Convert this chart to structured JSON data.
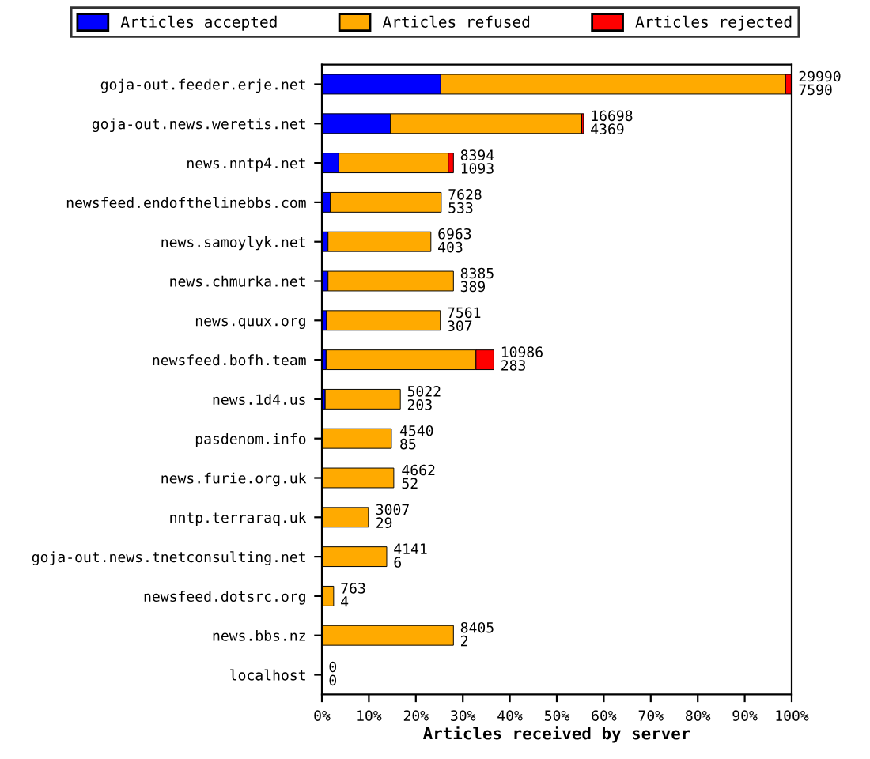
{
  "chart_data": {
    "type": "bar",
    "orientation": "horizontal",
    "stacked": true,
    "xlabel": "Articles received by server",
    "categories": [
      "goja-out.feeder.erje.net",
      "goja-out.news.weretis.net",
      "news.nntp4.net",
      "newsfeed.endofthelinebbs.com",
      "news.samoylyk.net",
      "news.chmurka.net",
      "news.quux.org",
      "newsfeed.bofh.team",
      "news.1d4.us",
      "pasdenom.info",
      "news.furie.org.uk",
      "nntp.terraraq.uk",
      "goja-out.news.tnetconsulting.net",
      "newsfeed.dotsrc.org",
      "news.bbs.nz",
      "localhost"
    ],
    "series": [
      {
        "name": "Articles accepted",
        "color": "#0000ff",
        "values": [
          25.3,
          14.6,
          3.6,
          1.8,
          1.3,
          1.3,
          1.0,
          0.9,
          0.7,
          null,
          null,
          null,
          null,
          null,
          null,
          null
        ]
      },
      {
        "name": "Articles refused",
        "color": "#ffaa00",
        "values": [
          73.4,
          40.7,
          23.3,
          23.6,
          21.9,
          26.7,
          24.2,
          31.9,
          16.0,
          14.8,
          15.3,
          9.9,
          13.8,
          2.5,
          28.0,
          0
        ]
      },
      {
        "name": "Articles rejected",
        "color": "#ff0000",
        "values": [
          1.3,
          0.4,
          1.1,
          null,
          null,
          null,
          null,
          3.8,
          null,
          null,
          null,
          null,
          null,
          null,
          null,
          null
        ]
      }
    ],
    "annotations": [
      {
        "text": "29990\n7590",
        "x": 100,
        "y": "goja-out.feeder.erje.net"
      },
      {
        "text": "16698\n4369",
        "x": 55.7,
        "y": "goja-out.news.weretis.net"
      },
      {
        "text": "8394\n1093",
        "x": 28.0,
        "y": "news.nntp4.net"
      },
      {
        "text": "7628\n533",
        "x": 25.4,
        "y": "newsfeed.endofthelinebbs.com"
      },
      {
        "text": "6963\n403",
        "x": 23.2,
        "y": "news.samoylyk.net"
      },
      {
        "text": "8385\n389",
        "x": 28.0,
        "y": "news.chmurka.net"
      },
      {
        "text": "7561\n307",
        "x": 25.2,
        "y": "news.quux.org"
      },
      {
        "text": "10986\n283",
        "x": 36.6,
        "y": "newsfeed.bofh.team"
      },
      {
        "text": "5022\n203",
        "x": 16.7,
        "y": "news.1d4.us"
      },
      {
        "text": "4540\n85",
        "x": 15.1,
        "y": "pasdenom.info"
      },
      {
        "text": "4662\n52",
        "x": 15.5,
        "y": "news.furie.org.uk"
      },
      {
        "text": "3007\n29",
        "x": 10.0,
        "y": "nntp.terraraq.uk"
      },
      {
        "text": "4141\n6",
        "x": 13.8,
        "y": "goja-out.news.tnetconsulting.net"
      },
      {
        "text": "763\n4",
        "x": 2.5,
        "y": "newsfeed.dotsrc.org"
      },
      {
        "text": "8405\n2",
        "x": 28.0,
        "y": "news.bbs.nz"
      },
      {
        "text": "0\n0",
        "x": 0,
        "y": "localhost"
      }
    ],
    "xlim": [
      0,
      100
    ],
    "xticks": [
      {
        "value": 0,
        "label": "0%"
      },
      {
        "value": 10,
        "label": "10%"
      },
      {
        "value": 20,
        "label": "20%"
      },
      {
        "value": 30,
        "label": "30%"
      },
      {
        "value": 40,
        "label": "40%"
      },
      {
        "value": 50,
        "label": "50%"
      },
      {
        "value": 60,
        "label": "60%"
      },
      {
        "value": 70,
        "label": "70%"
      },
      {
        "value": 80,
        "label": "80%"
      },
      {
        "value": 90,
        "label": "90%"
      },
      {
        "value": 100,
        "label": "100%"
      }
    ],
    "legend": "top",
    "grid": false
  }
}
